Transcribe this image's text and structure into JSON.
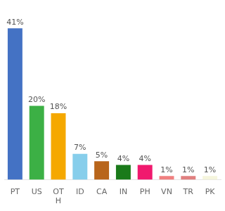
{
  "chart_data": {
    "type": "bar",
    "categories": [
      "PT",
      "US",
      "OT\nH",
      "ID",
      "CA",
      "IN",
      "PH",
      "VN",
      "TR",
      "PK"
    ],
    "values": [
      41,
      20,
      18,
      7,
      5,
      4,
      4,
      1,
      1,
      1
    ],
    "value_labels": [
      "41%",
      "20%",
      "18%",
      "7%",
      "5%",
      "4%",
      "4%",
      "1%",
      "1%",
      "1%"
    ],
    "colors": [
      "#4472c4",
      "#3cb045",
      "#f5a800",
      "#87ceeb",
      "#b8651b",
      "#1a7a1a",
      "#f0196e",
      "#f08080",
      "#e08080",
      "#f5f5dc"
    ],
    "ylim": [
      0,
      46
    ],
    "grid": false,
    "data_labels": true,
    "tick_labels": "x"
  }
}
